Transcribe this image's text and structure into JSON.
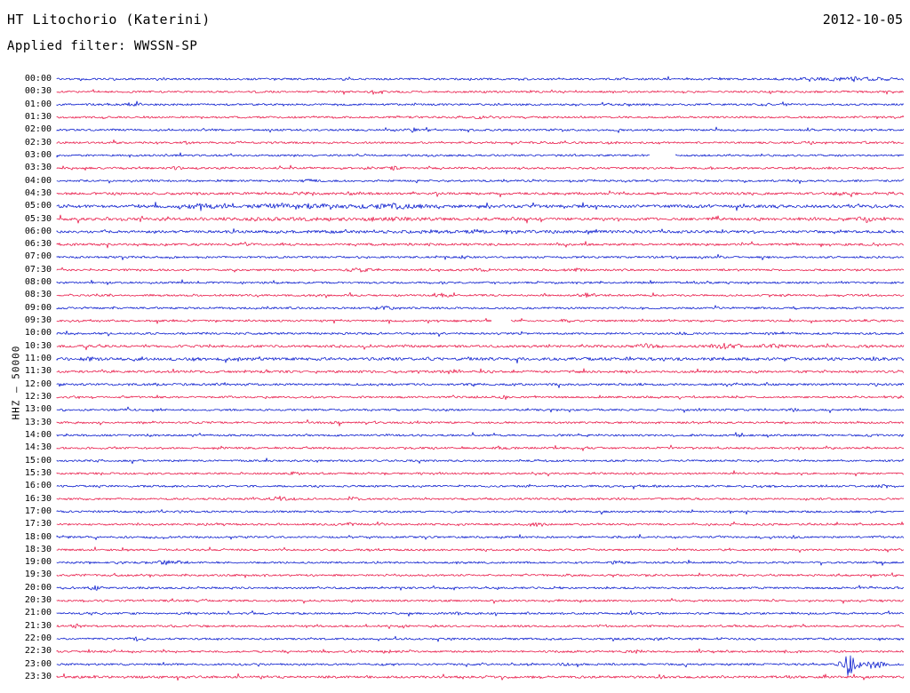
{
  "header": {
    "title": "HT Litochorio (Katerini)",
    "date": "2012-10-05",
    "filter_label": "Applied filter: WWSSN-SP"
  },
  "y_axis": {
    "label": "HHZ — 50000"
  },
  "chart_data": {
    "type": "line",
    "chart_kind": "helicorder-seismogram",
    "title": "HT Litochorio (Katerini)",
    "subtitle": "Applied filter: WWSSN-SP",
    "date": "2012-10-05",
    "channel_scale_label": "HHZ — 50000",
    "row_interval_minutes": 30,
    "rows_start": "00:00",
    "rows_end": "23:30",
    "legend_position": "none",
    "grid": false,
    "trace_colors": {
      "blue": "#0013cc",
      "red": "#e81243"
    },
    "rows": [
      {
        "time": "00:00",
        "color": "blue"
      },
      {
        "time": "00:30",
        "color": "red"
      },
      {
        "time": "01:00",
        "color": "blue"
      },
      {
        "time": "01:30",
        "color": "red"
      },
      {
        "time": "02:00",
        "color": "blue"
      },
      {
        "time": "02:30",
        "color": "red"
      },
      {
        "time": "03:00",
        "color": "blue"
      },
      {
        "time": "03:30",
        "color": "red"
      },
      {
        "time": "04:00",
        "color": "blue"
      },
      {
        "time": "04:30",
        "color": "red",
        "base_amp": 1.3
      },
      {
        "time": "05:00",
        "color": "blue",
        "base_amp": 1.6
      },
      {
        "time": "05:30",
        "color": "red",
        "base_amp": 1.5
      },
      {
        "time": "06:00",
        "color": "blue",
        "base_amp": 1.4
      },
      {
        "time": "06:30",
        "color": "red",
        "base_amp": 1.25
      },
      {
        "time": "07:00",
        "color": "blue"
      },
      {
        "time": "07:30",
        "color": "red"
      },
      {
        "time": "08:00",
        "color": "blue"
      },
      {
        "time": "08:30",
        "color": "red"
      },
      {
        "time": "09:00",
        "color": "blue"
      },
      {
        "time": "09:30",
        "color": "red"
      },
      {
        "time": "10:00",
        "color": "blue"
      },
      {
        "time": "10:30",
        "color": "red",
        "base_amp": 1.3
      },
      {
        "time": "11:00",
        "color": "blue",
        "base_amp": 1.6
      },
      {
        "time": "11:30",
        "color": "red",
        "base_amp": 1.25
      },
      {
        "time": "12:00",
        "color": "blue",
        "base_amp": 1.2
      },
      {
        "time": "12:30",
        "color": "red"
      },
      {
        "time": "13:00",
        "color": "blue"
      },
      {
        "time": "13:30",
        "color": "red"
      },
      {
        "time": "14:00",
        "color": "blue"
      },
      {
        "time": "14:30",
        "color": "red"
      },
      {
        "time": "15:00",
        "color": "blue"
      },
      {
        "time": "15:30",
        "color": "red"
      },
      {
        "time": "16:00",
        "color": "blue"
      },
      {
        "time": "16:30",
        "color": "red"
      },
      {
        "time": "17:00",
        "color": "blue"
      },
      {
        "time": "17:30",
        "color": "red"
      },
      {
        "time": "18:00",
        "color": "blue"
      },
      {
        "time": "18:30",
        "color": "red"
      },
      {
        "time": "19:00",
        "color": "blue"
      },
      {
        "time": "19:30",
        "color": "red"
      },
      {
        "time": "20:00",
        "color": "blue"
      },
      {
        "time": "20:30",
        "color": "red"
      },
      {
        "time": "21:00",
        "color": "blue"
      },
      {
        "time": "21:30",
        "color": "red"
      },
      {
        "time": "22:00",
        "color": "blue"
      },
      {
        "time": "22:30",
        "color": "red"
      },
      {
        "time": "23:00",
        "color": "blue"
      },
      {
        "time": "23:30",
        "color": "red",
        "base_amp": 1.25
      }
    ],
    "events": [
      {
        "time": "00:00",
        "x_frac": 0.93,
        "width_frac": 0.18,
        "amplitude": 1.8
      },
      {
        "time": "00:30",
        "x_frac": 0.375,
        "width_frac": 0.02,
        "amplitude": 2.5
      },
      {
        "time": "01:00",
        "x_frac": 0.09,
        "width_frac": 0.025,
        "amplitude": 2.2
      },
      {
        "time": "01:00",
        "x_frac": 0.84,
        "width_frac": 0.02,
        "amplitude": 2.0
      },
      {
        "time": "01:30",
        "x_frac": 0.5,
        "width_frac": 0.02,
        "amplitude": 1.6
      },
      {
        "time": "02:00",
        "x_frac": 0.42,
        "width_frac": 0.025,
        "amplitude": 2.0
      },
      {
        "time": "02:30",
        "x_frac": 0.155,
        "width_frac": 0.02,
        "amplitude": 1.6
      },
      {
        "time": "02:30",
        "x_frac": 0.89,
        "width_frac": 0.02,
        "amplitude": 2.0
      },
      {
        "time": "03:30",
        "x_frac": 0.14,
        "width_frac": 0.02,
        "amplitude": 1.8
      },
      {
        "time": "03:30",
        "x_frac": 0.4,
        "width_frac": 0.03,
        "amplitude": 2.0
      },
      {
        "time": "04:00",
        "x_frac": 0.3,
        "width_frac": 0.03,
        "amplitude": 1.6
      },
      {
        "time": "04:30",
        "x_frac": 0.3,
        "width_frac": 0.04,
        "amplitude": 2.0
      },
      {
        "time": "04:30",
        "x_frac": 0.92,
        "width_frac": 0.05,
        "amplitude": 1.6
      },
      {
        "time": "05:00",
        "x_frac": 0.17,
        "width_frac": 0.1,
        "amplitude": 2.2
      },
      {
        "time": "05:00",
        "x_frac": 0.28,
        "width_frac": 0.12,
        "amplitude": 3.0
      },
      {
        "time": "05:00",
        "x_frac": 0.4,
        "width_frac": 0.15,
        "amplitude": 2.0
      },
      {
        "time": "05:30",
        "x_frac": 0.35,
        "width_frac": 0.4,
        "amplitude": 1.0
      },
      {
        "time": "05:30",
        "x_frac": 0.955,
        "width_frac": 0.025,
        "amplitude": 3.5
      },
      {
        "time": "06:00",
        "x_frac": 0.5,
        "width_frac": 0.7,
        "amplitude": 0.6
      },
      {
        "time": "06:30",
        "x_frac": 0.22,
        "width_frac": 0.03,
        "amplitude": 1.5
      },
      {
        "time": "07:00",
        "x_frac": 0.48,
        "width_frac": 0.02,
        "amplitude": 1.5
      },
      {
        "time": "07:30",
        "x_frac": 0.355,
        "width_frac": 0.04,
        "amplitude": 2.2
      },
      {
        "time": "07:30",
        "x_frac": 0.5,
        "width_frac": 0.03,
        "amplitude": 2.0
      },
      {
        "time": "07:30",
        "x_frac": 0.615,
        "width_frac": 0.04,
        "amplitude": 2.2
      },
      {
        "time": "08:00",
        "x_frac": 0.76,
        "width_frac": 0.02,
        "amplitude": 1.4
      },
      {
        "time": "08:30",
        "x_frac": 0.455,
        "width_frac": 0.025,
        "amplitude": 1.8
      },
      {
        "time": "08:30",
        "x_frac": 0.625,
        "width_frac": 0.035,
        "amplitude": 2.5
      },
      {
        "time": "09:00",
        "x_frac": 0.385,
        "width_frac": 0.035,
        "amplitude": 2.2
      },
      {
        "time": "09:30",
        "x_frac": 0.6,
        "width_frac": 0.02,
        "amplitude": 1.5
      },
      {
        "time": "10:00",
        "x_frac": 0.74,
        "width_frac": 0.02,
        "amplitude": 1.5
      },
      {
        "time": "10:30",
        "x_frac": 0.7,
        "width_frac": 0.05,
        "amplitude": 2.0
      },
      {
        "time": "10:30",
        "x_frac": 0.79,
        "width_frac": 0.05,
        "amplitude": 3.0
      },
      {
        "time": "10:30",
        "x_frac": 0.845,
        "width_frac": 0.04,
        "amplitude": 2.5
      },
      {
        "time": "10:30",
        "x_frac": 0.95,
        "width_frac": 0.03,
        "amplitude": 2.0
      },
      {
        "time": "11:00",
        "x_frac": 0.04,
        "width_frac": 0.03,
        "amplitude": 1.5
      },
      {
        "time": "11:30",
        "x_frac": 0.47,
        "width_frac": 0.02,
        "amplitude": 1.5
      },
      {
        "time": "12:30",
        "x_frac": 0.525,
        "width_frac": 0.025,
        "amplitude": 2.0
      },
      {
        "time": "13:00",
        "x_frac": 0.87,
        "width_frac": 0.02,
        "amplitude": 1.8
      },
      {
        "time": "13:30",
        "x_frac": 0.33,
        "width_frac": 0.02,
        "amplitude": 1.6
      },
      {
        "time": "14:30",
        "x_frac": 0.52,
        "width_frac": 0.02,
        "amplitude": 1.8
      },
      {
        "time": "15:00",
        "x_frac": 0.575,
        "width_frac": 0.03,
        "amplitude": 2.0
      },
      {
        "time": "15:30",
        "x_frac": 0.28,
        "width_frac": 0.02,
        "amplitude": 1.6
      },
      {
        "time": "16:00",
        "x_frac": 0.975,
        "width_frac": 0.02,
        "amplitude": 1.8
      },
      {
        "time": "16:30",
        "x_frac": 0.265,
        "width_frac": 0.05,
        "amplitude": 2.5
      },
      {
        "time": "16:30",
        "x_frac": 0.35,
        "width_frac": 0.03,
        "amplitude": 1.8
      },
      {
        "time": "17:30",
        "x_frac": 0.35,
        "width_frac": 0.025,
        "amplitude": 1.8
      },
      {
        "time": "17:30",
        "x_frac": 0.565,
        "width_frac": 0.03,
        "amplitude": 2.0
      },
      {
        "time": "18:00",
        "x_frac": 0.87,
        "width_frac": 0.025,
        "amplitude": 1.6
      },
      {
        "time": "19:00",
        "x_frac": 0.135,
        "width_frac": 0.05,
        "amplitude": 2.5
      },
      {
        "time": "19:00",
        "x_frac": 0.66,
        "width_frac": 0.02,
        "amplitude": 1.6
      },
      {
        "time": "20:00",
        "x_frac": 0.045,
        "width_frac": 0.025,
        "amplitude": 2.2
      },
      {
        "time": "20:00",
        "x_frac": 0.96,
        "width_frac": 0.02,
        "amplitude": 1.8
      },
      {
        "time": "21:00",
        "x_frac": 0.47,
        "width_frac": 0.025,
        "amplitude": 1.8
      },
      {
        "time": "21:30",
        "x_frac": 0.025,
        "width_frac": 0.02,
        "amplitude": 3.0
      },
      {
        "time": "22:00",
        "x_frac": 0.095,
        "width_frac": 0.03,
        "amplitude": 2.2
      },
      {
        "time": "22:30",
        "x_frac": 0.685,
        "width_frac": 0.02,
        "amplitude": 1.5
      },
      {
        "time": "23:00",
        "x_frac": 0.6,
        "width_frac": 0.02,
        "amplitude": 1.5
      },
      {
        "time": "23:00",
        "x_frac": 0.935,
        "width_frac": 0.03,
        "amplitude": 18
      },
      {
        "time": "23:00",
        "x_frac": 0.965,
        "width_frac": 0.05,
        "amplitude": 5
      },
      {
        "time": "23:30",
        "x_frac": 0.5,
        "width_frac": 0.02,
        "amplitude": 1.4
      }
    ],
    "gaps": [
      {
        "time": "03:00",
        "x_frac": 0.715,
        "width_frac": 0.03
      },
      {
        "time": "09:30",
        "x_frac": 0.525,
        "width_frac": 0.022
      }
    ]
  }
}
